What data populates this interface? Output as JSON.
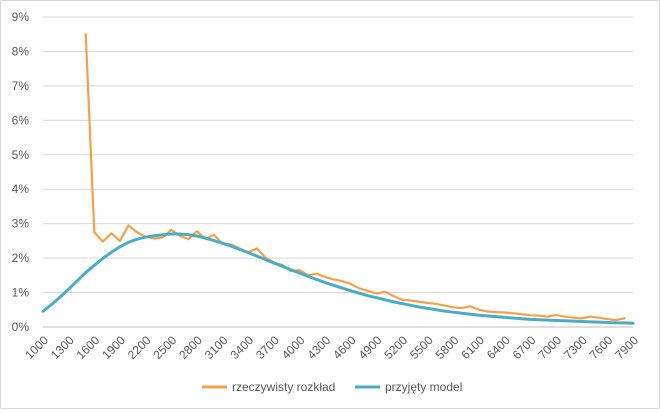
{
  "chart_data": {
    "type": "line",
    "title": "",
    "xlabel": "",
    "ylabel": "",
    "ylim": [
      0,
      9
    ],
    "y_ticks": [
      "0%",
      "1%",
      "2%",
      "3%",
      "4%",
      "5%",
      "6%",
      "7%",
      "8%",
      "9%"
    ],
    "x_start": 1000,
    "x_step": 100,
    "x_ticks": [
      "1000",
      "1300",
      "1600",
      "1900",
      "2200",
      "2500",
      "2800",
      "3100",
      "3400",
      "3700",
      "4000",
      "4300",
      "4600",
      "4900",
      "5200",
      "5500",
      "5800",
      "6100",
      "6400",
      "6700",
      "7000",
      "7300",
      "7600",
      "7900"
    ],
    "grid": "horizontal",
    "legend_position": "bottom",
    "series": [
      {
        "name": "rzeczywisty rozkład",
        "color": "#f4a249",
        "x_from": 1500,
        "values": [
          8.5,
          2.75,
          2.48,
          2.72,
          2.5,
          2.95,
          2.75,
          2.62,
          2.57,
          2.6,
          2.82,
          2.65,
          2.55,
          2.78,
          2.56,
          2.68,
          2.41,
          2.4,
          2.28,
          2.17,
          2.28,
          2.02,
          1.87,
          1.8,
          1.62,
          1.65,
          1.5,
          1.55,
          1.45,
          1.38,
          1.33,
          1.25,
          1.12,
          1.05,
          0.97,
          1.02,
          0.9,
          0.79,
          0.77,
          0.73,
          0.7,
          0.67,
          0.62,
          0.57,
          0.55,
          0.6,
          0.5,
          0.45,
          0.43,
          0.42,
          0.4,
          0.37,
          0.34,
          0.33,
          0.3,
          0.35,
          0.3,
          0.27,
          0.25,
          0.3,
          0.27,
          0.23,
          0.2,
          0.25
        ]
      },
      {
        "name": "przyjęty model",
        "color": "#4bacc6",
        "x_from": 1000,
        "values": [
          0.46,
          0.65,
          0.87,
          1.1,
          1.34,
          1.58,
          1.79,
          1.99,
          2.17,
          2.33,
          2.46,
          2.55,
          2.61,
          2.65,
          2.68,
          2.7,
          2.7,
          2.68,
          2.64,
          2.58,
          2.51,
          2.43,
          2.35,
          2.25,
          2.16,
          2.06,
          1.96,
          1.86,
          1.76,
          1.66,
          1.57,
          1.47,
          1.38,
          1.29,
          1.21,
          1.13,
          1.05,
          0.98,
          0.91,
          0.85,
          0.79,
          0.73,
          0.68,
          0.63,
          0.58,
          0.54,
          0.5,
          0.46,
          0.43,
          0.4,
          0.37,
          0.34,
          0.32,
          0.3,
          0.28,
          0.26,
          0.24,
          0.22,
          0.21,
          0.2,
          0.19,
          0.18,
          0.17,
          0.16,
          0.15,
          0.14,
          0.13,
          0.12,
          0.12,
          0.11
        ]
      }
    ]
  }
}
